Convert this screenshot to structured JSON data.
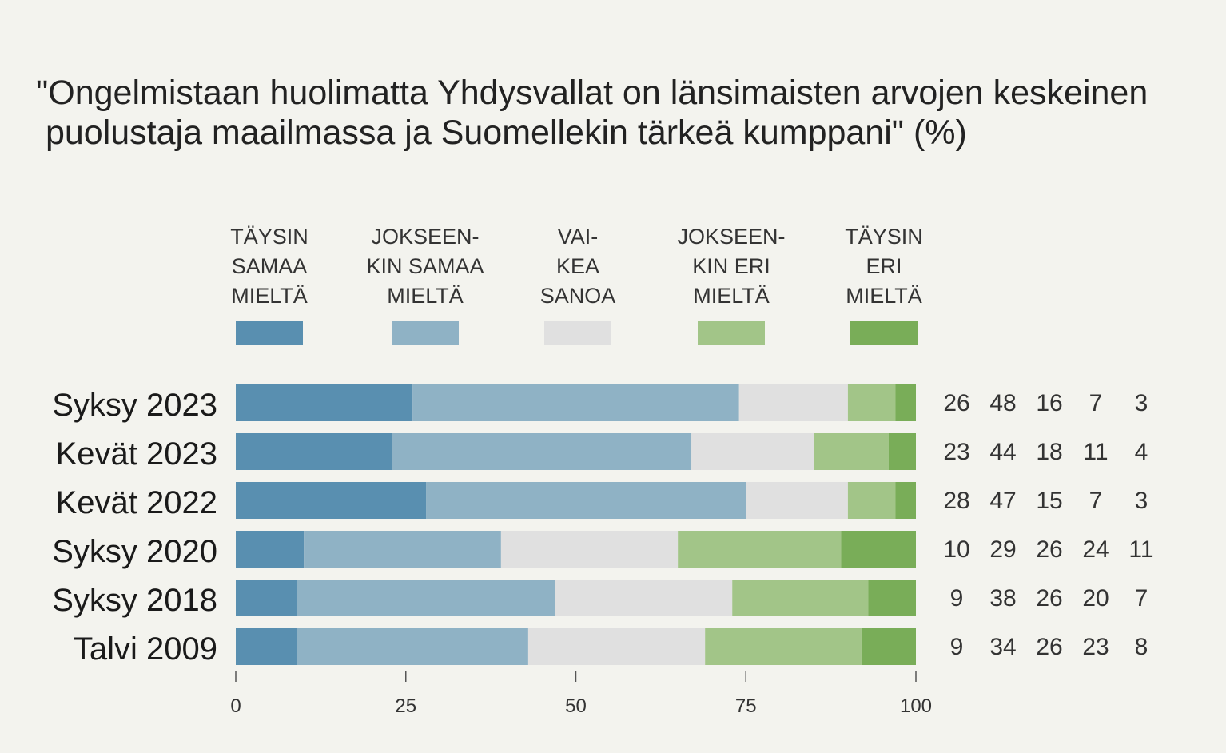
{
  "chart_data": {
    "type": "bar",
    "orientation": "horizontal",
    "stacked": true,
    "title_lines": [
      "\"Ongelmistaan huolimatta Yhdysvallat on länsimaisten arvojen keskeinen",
      " puolustaja maailmassa ja Suomellekin tärkeä kumppani\" (%)"
    ],
    "categories": [
      "Syksy 2023",
      "Kevät 2023",
      "Kevät 2022",
      "Syksy 2020",
      "Syksy 2018",
      "Talvi 2009"
    ],
    "series": [
      {
        "name_lines": [
          "TÄYSIN",
          "SAMAA",
          "MIELTÄ"
        ],
        "color": "#598fb0",
        "values": [
          26,
          23,
          28,
          10,
          9,
          9
        ]
      },
      {
        "name_lines": [
          "JOKSEEN-",
          "KIN SAMAA",
          "MIELTÄ"
        ],
        "color": "#8fb2c5",
        "values": [
          48,
          44,
          47,
          29,
          38,
          34
        ]
      },
      {
        "name_lines": [
          "VAI-",
          "KEA",
          "SANOA"
        ],
        "color": "#e0e0e0",
        "values": [
          16,
          18,
          15,
          26,
          26,
          26
        ]
      },
      {
        "name_lines": [
          "JOKSEEN-",
          "KIN ERI",
          "MIELTÄ"
        ],
        "color": "#a2c588",
        "values": [
          7,
          11,
          7,
          24,
          20,
          23
        ]
      },
      {
        "name_lines": [
          "TÄYSIN",
          "ERI",
          "MIELTÄ"
        ],
        "color": "#79ad58",
        "values": [
          3,
          4,
          3,
          11,
          7,
          8
        ]
      }
    ],
    "xlim": [
      0,
      100
    ],
    "xticks": [
      0,
      25,
      50,
      75,
      100
    ],
    "xtick_labels": [
      "0",
      "25",
      "50",
      "75",
      "100"
    ],
    "grid": false,
    "legend_position": "top"
  }
}
